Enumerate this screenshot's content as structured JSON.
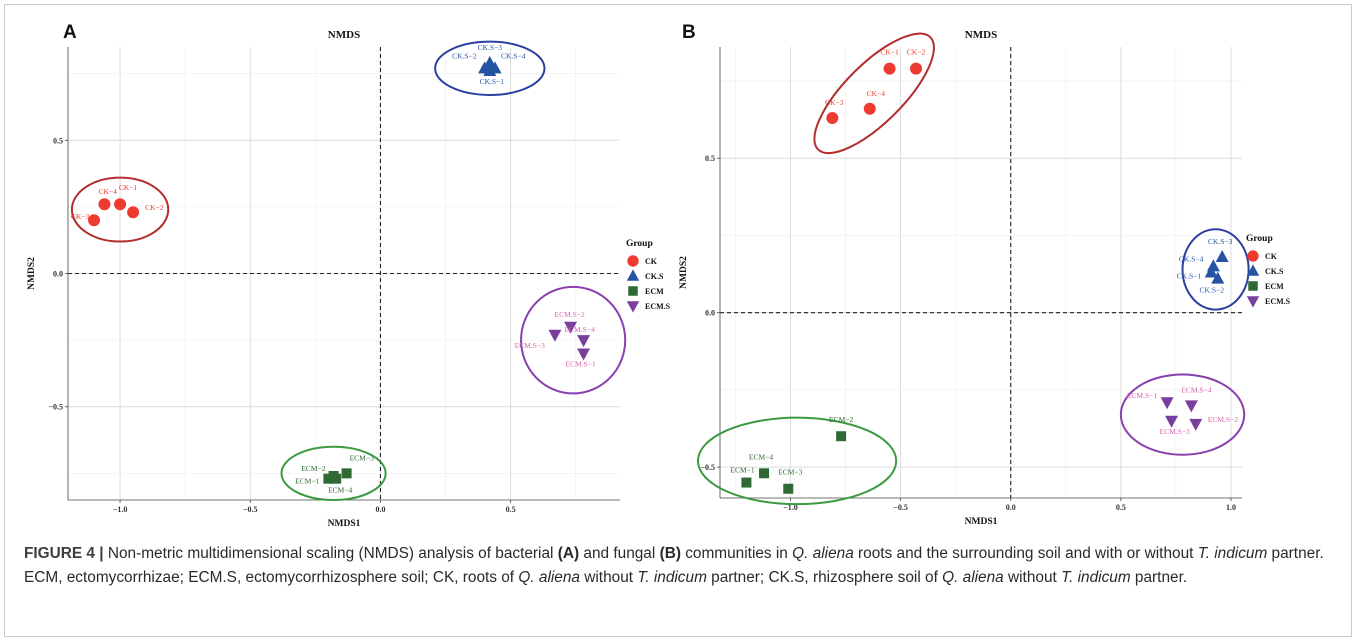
{
  "caption": {
    "label": "FIGURE 4 |",
    "parts": [
      {
        "t": " Non-metric multidimensional scaling (NMDS) analysis of bacterial ",
        "s": "n"
      },
      {
        "t": "(A)",
        "s": "b"
      },
      {
        "t": " and fungal ",
        "s": "n"
      },
      {
        "t": "(B)",
        "s": "b"
      },
      {
        "t": " communities in ",
        "s": "n"
      },
      {
        "t": "Q. aliena",
        "s": "i"
      },
      {
        "t": " roots and the surrounding soil and with or without ",
        "s": "n"
      },
      {
        "t": "T. indicum",
        "s": "i"
      },
      {
        "t": " partner. ECM, ectomycorrhizae; ECM.S, ectomycorrhizosphere soil; CK, roots of ",
        "s": "n"
      },
      {
        "t": "Q. aliena",
        "s": "i"
      },
      {
        "t": " without ",
        "s": "n"
      },
      {
        "t": "T. indicum",
        "s": "i"
      },
      {
        "t": " partner; CK.S, rhizosphere soil of ",
        "s": "n"
      },
      {
        "t": "Q. aliena",
        "s": "i"
      },
      {
        "t": " without ",
        "s": "n"
      },
      {
        "t": "T. indicum",
        "s": "i"
      },
      {
        "t": " partner.",
        "s": "n"
      }
    ]
  },
  "colors": {
    "CK": "#ee3b32",
    "CK.S": "#2554a4",
    "ECM": "#2f6a34",
    "ECM.S": "#7a3e9d",
    "CK_label": "#ee3b32",
    "CK.S_label": "#2554a4",
    "ECM_label": "#2f6a34",
    "ECM.S_label": "#d966ae",
    "CK_ellipse": "#b32d2d",
    "CK.S_ellipse": "#2a3fa0",
    "ECM_ellipse": "#3c9a40",
    "ECM.S_ellipse": "#8a3fb0"
  },
  "chart_data": [
    {
      "panel_label": "A",
      "type": "scatter",
      "title": "NMDS",
      "xlabel": "NMDS1",
      "ylabel": "NMDS2",
      "xlim": [
        -1.2,
        0.92
      ],
      "ylim": [
        -0.85,
        0.85
      ],
      "xticks": [
        -1.0,
        -0.5,
        0.0,
        0.5
      ],
      "xtick_labels": [
        "−1.0",
        "−0.5",
        "0.0",
        "0.5"
      ],
      "yticks": [
        -0.5,
        0.0,
        0.5
      ],
      "ytick_labels": [
        "−0.5",
        "0.0",
        "0.5"
      ],
      "grid": true,
      "reference_lines": {
        "x": 0,
        "y": 0
      },
      "legend": {
        "title": "Group",
        "entries": [
          "CK",
          "CK.S",
          "ECM",
          "ECM.S"
        ],
        "position": "right"
      },
      "series": [
        {
          "name": "CK",
          "marker": "circle",
          "points": [
            {
              "label": "CK−1",
              "x": -1.0,
              "y": 0.26
            },
            {
              "label": "CK−2",
              "x": -0.95,
              "y": 0.23
            },
            {
              "label": "CK−3",
              "x": -1.1,
              "y": 0.2
            },
            {
              "label": "CK−4",
              "x": -1.06,
              "y": 0.26
            }
          ]
        },
        {
          "name": "CK.S",
          "marker": "triangle-up",
          "points": [
            {
              "label": "CK.S−1",
              "x": 0.42,
              "y": 0.76
            },
            {
              "label": "CK.S−2",
              "x": 0.4,
              "y": 0.77
            },
            {
              "label": "CK.S−3",
              "x": 0.42,
              "y": 0.79
            },
            {
              "label": "CK.S−4",
              "x": 0.44,
              "y": 0.77
            }
          ]
        },
        {
          "name": "ECM",
          "marker": "square",
          "points": [
            {
              "label": "ECM−1",
              "x": -0.2,
              "y": -0.77
            },
            {
              "label": "ECM−2",
              "x": -0.18,
              "y": -0.76
            },
            {
              "label": "ECM−3",
              "x": -0.13,
              "y": -0.75
            },
            {
              "label": "ECM−4",
              "x": -0.17,
              "y": -0.77
            }
          ]
        },
        {
          "name": "ECM.S",
          "marker": "triangle-down",
          "points": [
            {
              "label": "ECM.S−1",
              "x": 0.78,
              "y": -0.3
            },
            {
              "label": "ECM.S−2",
              "x": 0.73,
              "y": -0.2
            },
            {
              "label": "ECM.S−3",
              "x": 0.67,
              "y": -0.23
            },
            {
              "label": "ECM.S−4",
              "x": 0.78,
              "y": -0.25
            }
          ]
        }
      ],
      "ellipses": [
        {
          "group": "CK",
          "cx": -1.0,
          "cy": 0.24,
          "rx": 0.185,
          "ry": 0.12
        },
        {
          "group": "CK.S",
          "cx": 0.42,
          "cy": 0.77,
          "rx": 0.21,
          "ry": 0.1
        },
        {
          "group": "ECM",
          "cx": -0.18,
          "cy": -0.75,
          "rx": 0.2,
          "ry": 0.1
        },
        {
          "group": "ECM.S",
          "cx": 0.74,
          "cy": -0.25,
          "rx": 0.2,
          "ry": 0.2
        }
      ]
    },
    {
      "panel_label": "B",
      "type": "scatter",
      "title": "NMDS",
      "xlabel": "NMDS1",
      "ylabel": "NMDS2",
      "xlim": [
        -1.32,
        1.05
      ],
      "ylim": [
        -0.6,
        0.86
      ],
      "xticks": [
        -1.0,
        -0.5,
        0.0,
        0.5,
        1.0
      ],
      "xtick_labels": [
        "−1.0",
        "−0.5",
        "0.0",
        "0.5",
        "1.0"
      ],
      "yticks": [
        -0.5,
        0.0,
        0.5
      ],
      "ytick_labels": [
        "−0.5",
        "0.0",
        "0.5"
      ],
      "grid": true,
      "reference_lines": {
        "x": 0,
        "y": 0
      },
      "legend": {
        "title": "Group",
        "entries": [
          "CK",
          "CK.S",
          "ECM",
          "ECM.S"
        ],
        "position": "right"
      },
      "series": [
        {
          "name": "CK",
          "marker": "circle",
          "points": [
            {
              "label": "CK−1",
              "x": -0.55,
              "y": 0.79
            },
            {
              "label": "CK−2",
              "x": -0.43,
              "y": 0.79
            },
            {
              "label": "CK−3",
              "x": -0.81,
              "y": 0.63
            },
            {
              "label": "CK−4",
              "x": -0.64,
              "y": 0.66
            }
          ]
        },
        {
          "name": "CK.S",
          "marker": "triangle-up",
          "points": [
            {
              "label": "CK.S−1",
              "x": 0.91,
              "y": 0.13
            },
            {
              "label": "CK.S−2",
              "x": 0.94,
              "y": 0.11
            },
            {
              "label": "CK.S−3",
              "x": 0.96,
              "y": 0.18
            },
            {
              "label": "CK.S−4",
              "x": 0.92,
              "y": 0.15
            }
          ]
        },
        {
          "name": "ECM",
          "marker": "square",
          "points": [
            {
              "label": "ECM−1",
              "x": -1.2,
              "y": -0.55
            },
            {
              "label": "ECM−2",
              "x": -0.77,
              "y": -0.4
            },
            {
              "label": "ECM−3",
              "x": -1.01,
              "y": -0.57
            },
            {
              "label": "ECM−4",
              "x": -1.12,
              "y": -0.52
            }
          ]
        },
        {
          "name": "ECM.S",
          "marker": "triangle-down",
          "points": [
            {
              "label": "ECM.S−1",
              "x": 0.71,
              "y": -0.29
            },
            {
              "label": "ECM.S−2",
              "x": 0.84,
              "y": -0.36
            },
            {
              "label": "ECM.S−3",
              "x": 0.73,
              "y": -0.35
            },
            {
              "label": "ECM.S−4",
              "x": 0.82,
              "y": -0.3
            }
          ]
        }
      ],
      "ellipses": [
        {
          "group": "CK",
          "cx": -0.62,
          "cy": 0.71,
          "rx": 0.3,
          "ry": 0.11,
          "angle": -45
        },
        {
          "group": "CK.S",
          "cx": 0.93,
          "cy": 0.14,
          "rx": 0.15,
          "ry": 0.13
        },
        {
          "group": "ECM",
          "cx": -0.97,
          "cy": -0.48,
          "rx": 0.45,
          "ry": 0.14
        },
        {
          "group": "ECM.S",
          "cx": 0.78,
          "cy": -0.33,
          "rx": 0.28,
          "ry": 0.13
        }
      ]
    }
  ]
}
